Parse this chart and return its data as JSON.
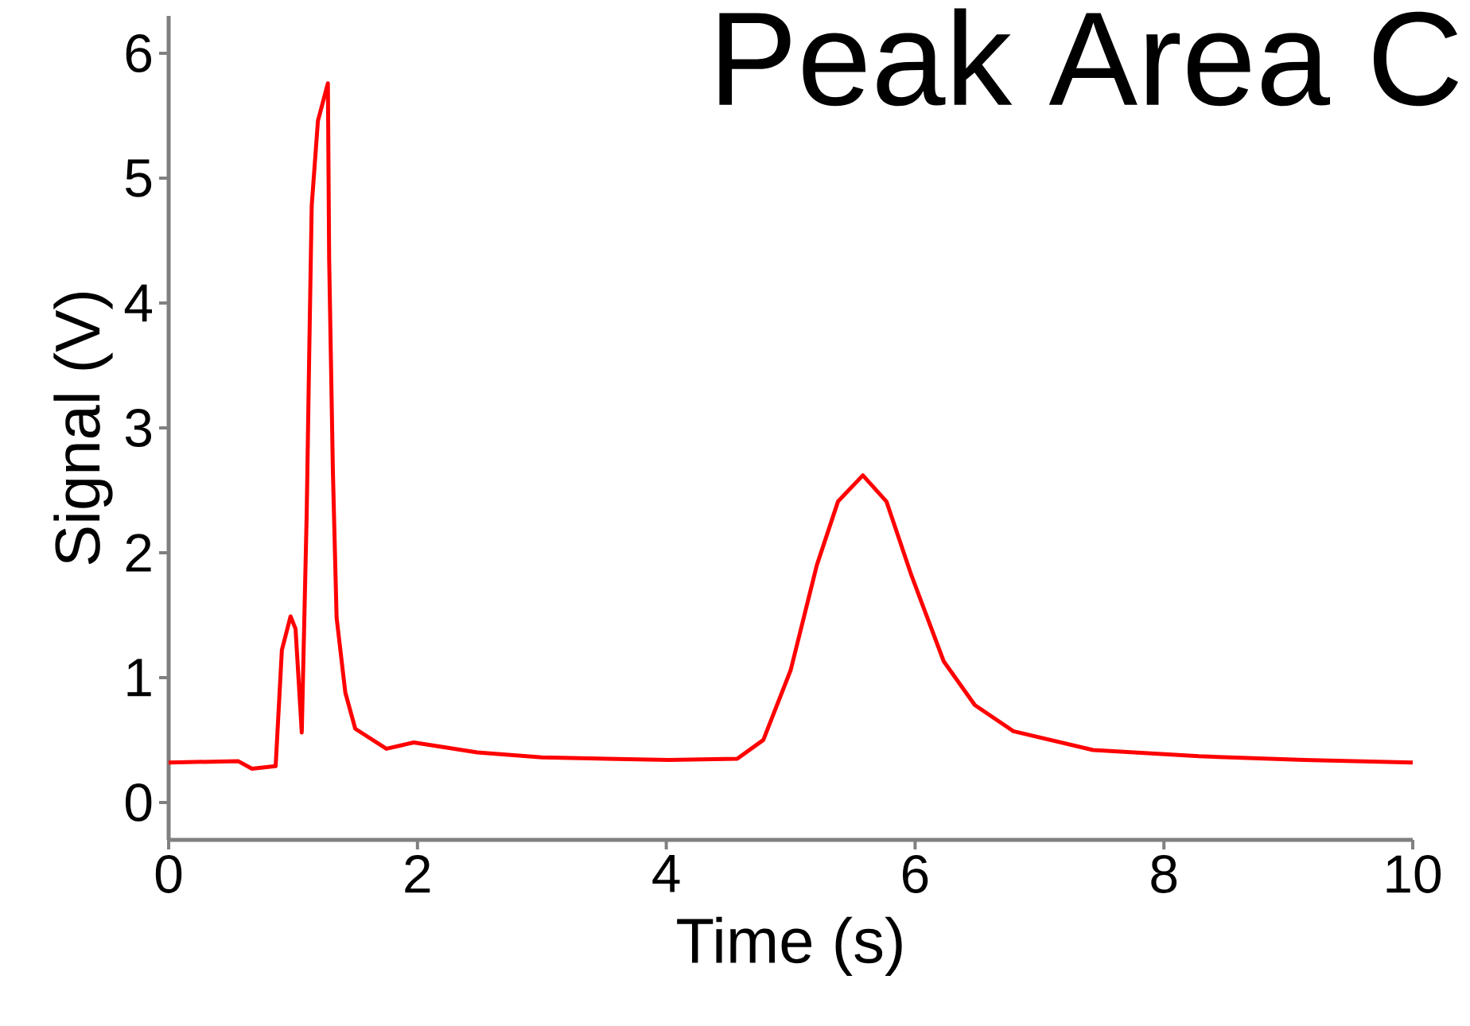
{
  "chart_data": {
    "type": "line",
    "title": "Peak Area C",
    "xlabel": "Time (s)",
    "ylabel": "Signal (V)",
    "x": [
      0,
      0.56,
      0.67,
      0.86,
      0.91,
      0.98,
      1.02,
      1.07,
      1.11,
      1.13,
      1.15,
      1.2,
      1.28,
      1.29,
      1.32,
      1.35,
      1.42,
      1.5,
      1.75,
      1.97,
      2.48,
      3.0,
      4.02,
      4.57,
      4.78,
      5.0,
      5.21,
      5.38,
      5.58,
      5.77,
      5.97,
      6.23,
      6.48,
      6.79,
      7.43,
      8.28,
      9.13,
      10
    ],
    "series": [
      {
        "color": "#ff0000",
        "values": [
          0.32,
          0.33,
          0.27,
          0.29,
          1.22,
          1.49,
          1.39,
          0.56,
          2.33,
          3.6,
          4.78,
          5.46,
          5.76,
          4.36,
          2.66,
          1.48,
          0.88,
          0.59,
          0.43,
          0.48,
          0.4,
          0.36,
          0.34,
          0.35,
          0.5,
          1.06,
          1.9,
          2.41,
          2.62,
          2.41,
          1.82,
          1.13,
          0.78,
          0.57,
          0.42,
          0.37,
          0.34,
          0.32
        ]
      }
    ],
    "xlim": [
      0,
      10
    ],
    "ylim": [
      -0.3,
      6.3
    ],
    "xticks": [
      0,
      2,
      4,
      6,
      8,
      10
    ],
    "yticks": [
      0,
      1,
      2,
      3,
      4,
      5,
      6
    ],
    "grid": false,
    "marker": "none",
    "line_style": "solid"
  }
}
